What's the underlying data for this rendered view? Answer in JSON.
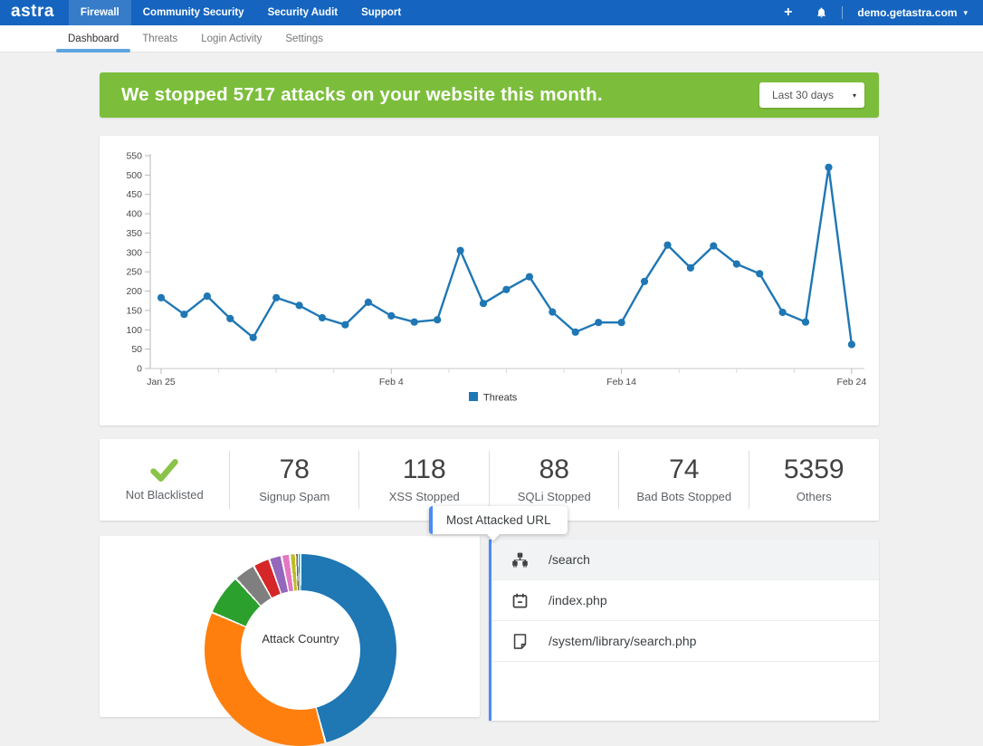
{
  "navbar": {
    "brand": "astra",
    "items": [
      {
        "label": "Firewall",
        "active": true
      },
      {
        "label": "Community Security",
        "active": false
      },
      {
        "label": "Security Audit",
        "active": false
      },
      {
        "label": "Support",
        "active": false
      }
    ],
    "account": "demo.getastra.com",
    "icons": {
      "plus": "+",
      "caret": "▾"
    }
  },
  "subnav": {
    "items": [
      {
        "label": "Dashboard",
        "active": true
      },
      {
        "label": "Threats",
        "active": false
      },
      {
        "label": "Login Activity",
        "active": false
      },
      {
        "label": "Settings",
        "active": false
      }
    ]
  },
  "banner": {
    "prefix": "We stopped",
    "count": "5717",
    "suffix": "attacks on your website this month.",
    "range_label": "Last 30 days",
    "bg_color": "#7cbe3b"
  },
  "stats": [
    {
      "icon": "check",
      "icon_color": "#8bc34a",
      "label": "Not Blacklisted"
    },
    {
      "value": "78",
      "label": "Signup Spam"
    },
    {
      "value": "118",
      "label": "XSS Stopped"
    },
    {
      "value": "88",
      "label": "SQLi Stopped"
    },
    {
      "value": "74",
      "label": "Bad Bots Stopped"
    },
    {
      "value": "5359",
      "label": "Others"
    }
  ],
  "most_attacked": {
    "title": "Most Attacked URL",
    "accent_color": "#4c8bf5",
    "items": [
      {
        "icon": "sitemap-icon",
        "url": "/search",
        "highlighted": true
      },
      {
        "icon": "calendar-icon",
        "url": "/index.php",
        "highlighted": false
      },
      {
        "icon": "file-icon",
        "url": "/system/library/search.php",
        "highlighted": false
      }
    ]
  },
  "chart_data": [
    {
      "type": "line",
      "title": "",
      "x": [
        "Jan 25",
        "Jan 26",
        "Jan 27",
        "Jan 28",
        "Jan 29",
        "Jan 30",
        "Jan 31",
        "Feb 1",
        "Feb 2",
        "Feb 3",
        "Feb 4",
        "Feb 5",
        "Feb 6",
        "Feb 7",
        "Feb 8",
        "Feb 9",
        "Feb 10",
        "Feb 11",
        "Feb 12",
        "Feb 13",
        "Feb 14",
        "Feb 15",
        "Feb 16",
        "Feb 17",
        "Feb 18",
        "Feb 19",
        "Feb 20",
        "Feb 21",
        "Feb 22",
        "Feb 23",
        "Feb 24"
      ],
      "series": [
        {
          "name": "Threats",
          "color": "#1f77b4",
          "values": [
            183,
            140,
            187,
            129,
            80,
            183,
            163,
            131,
            113,
            171,
            136,
            120,
            126,
            305,
            168,
            204,
            237,
            146,
            94,
            119,
            119,
            225,
            319,
            260,
            317,
            270,
            245,
            145,
            120,
            520,
            62
          ]
        }
      ],
      "ylim": [
        0,
        550
      ],
      "y_ticks": [
        0,
        50,
        100,
        150,
        200,
        250,
        300,
        350,
        400,
        450,
        500,
        550
      ],
      "x_tick_labels": [
        "Jan 25",
        "Feb 4",
        "Feb 14",
        "Feb 24"
      ],
      "x_major_idx": [
        0,
        10,
        20,
        30
      ],
      "x_minor_idx": [
        2.5,
        5,
        7.5,
        12.5,
        15,
        17.5,
        22.5,
        25,
        27.5
      ],
      "grid": false,
      "legend_position": "bottom"
    },
    {
      "type": "pie",
      "title": "Attack Country",
      "note": "donut chart, bottom half cut off by viewport, segment labels not visible",
      "segments": [
        {
          "color_name": "blue",
          "color": "#1f77b4",
          "pct": 45.8
        },
        {
          "color_name": "orange",
          "color": "#ff7f0e",
          "pct": 35.6
        },
        {
          "color_name": "green",
          "color": "#2ca02c",
          "pct": 6.9
        },
        {
          "color_name": "gray",
          "color": "#7f7f7f",
          "pct": 3.6
        },
        {
          "color_name": "red",
          "color": "#d62728",
          "pct": 2.8
        },
        {
          "color_name": "purple",
          "color": "#9467bd",
          "pct": 2.1
        },
        {
          "color_name": "pink",
          "color": "#e377c2",
          "pct": 1.4
        },
        {
          "color_name": "olive",
          "color": "#bcbd22",
          "pct": 1.0
        },
        {
          "color_name": "brown",
          "color": "#8c564b",
          "pct": 0.4
        },
        {
          "color_name": "cyan",
          "color": "#17becf",
          "pct": 0.4
        }
      ]
    }
  ]
}
